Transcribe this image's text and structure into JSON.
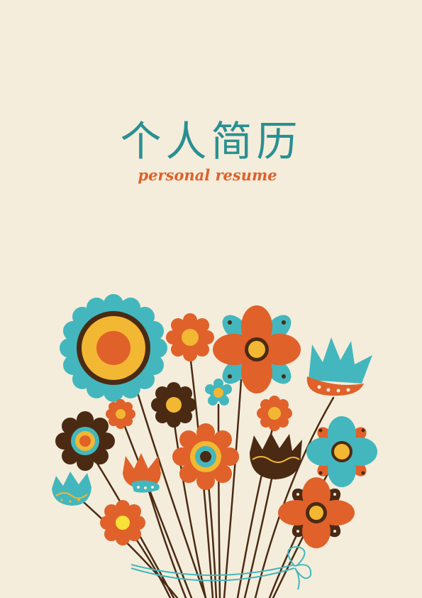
{
  "cover": {
    "title": "个人简历",
    "subtitle": "personal resume"
  },
  "colors": {
    "background": "#f4eddb",
    "teal": "#43b7bd",
    "title_teal": "#2a8f92",
    "orange": "#e0612a",
    "yellow": "#f2b733",
    "brown": "#4b2a14"
  },
  "illustration": {
    "subject": "flower-bouquet-icon"
  }
}
